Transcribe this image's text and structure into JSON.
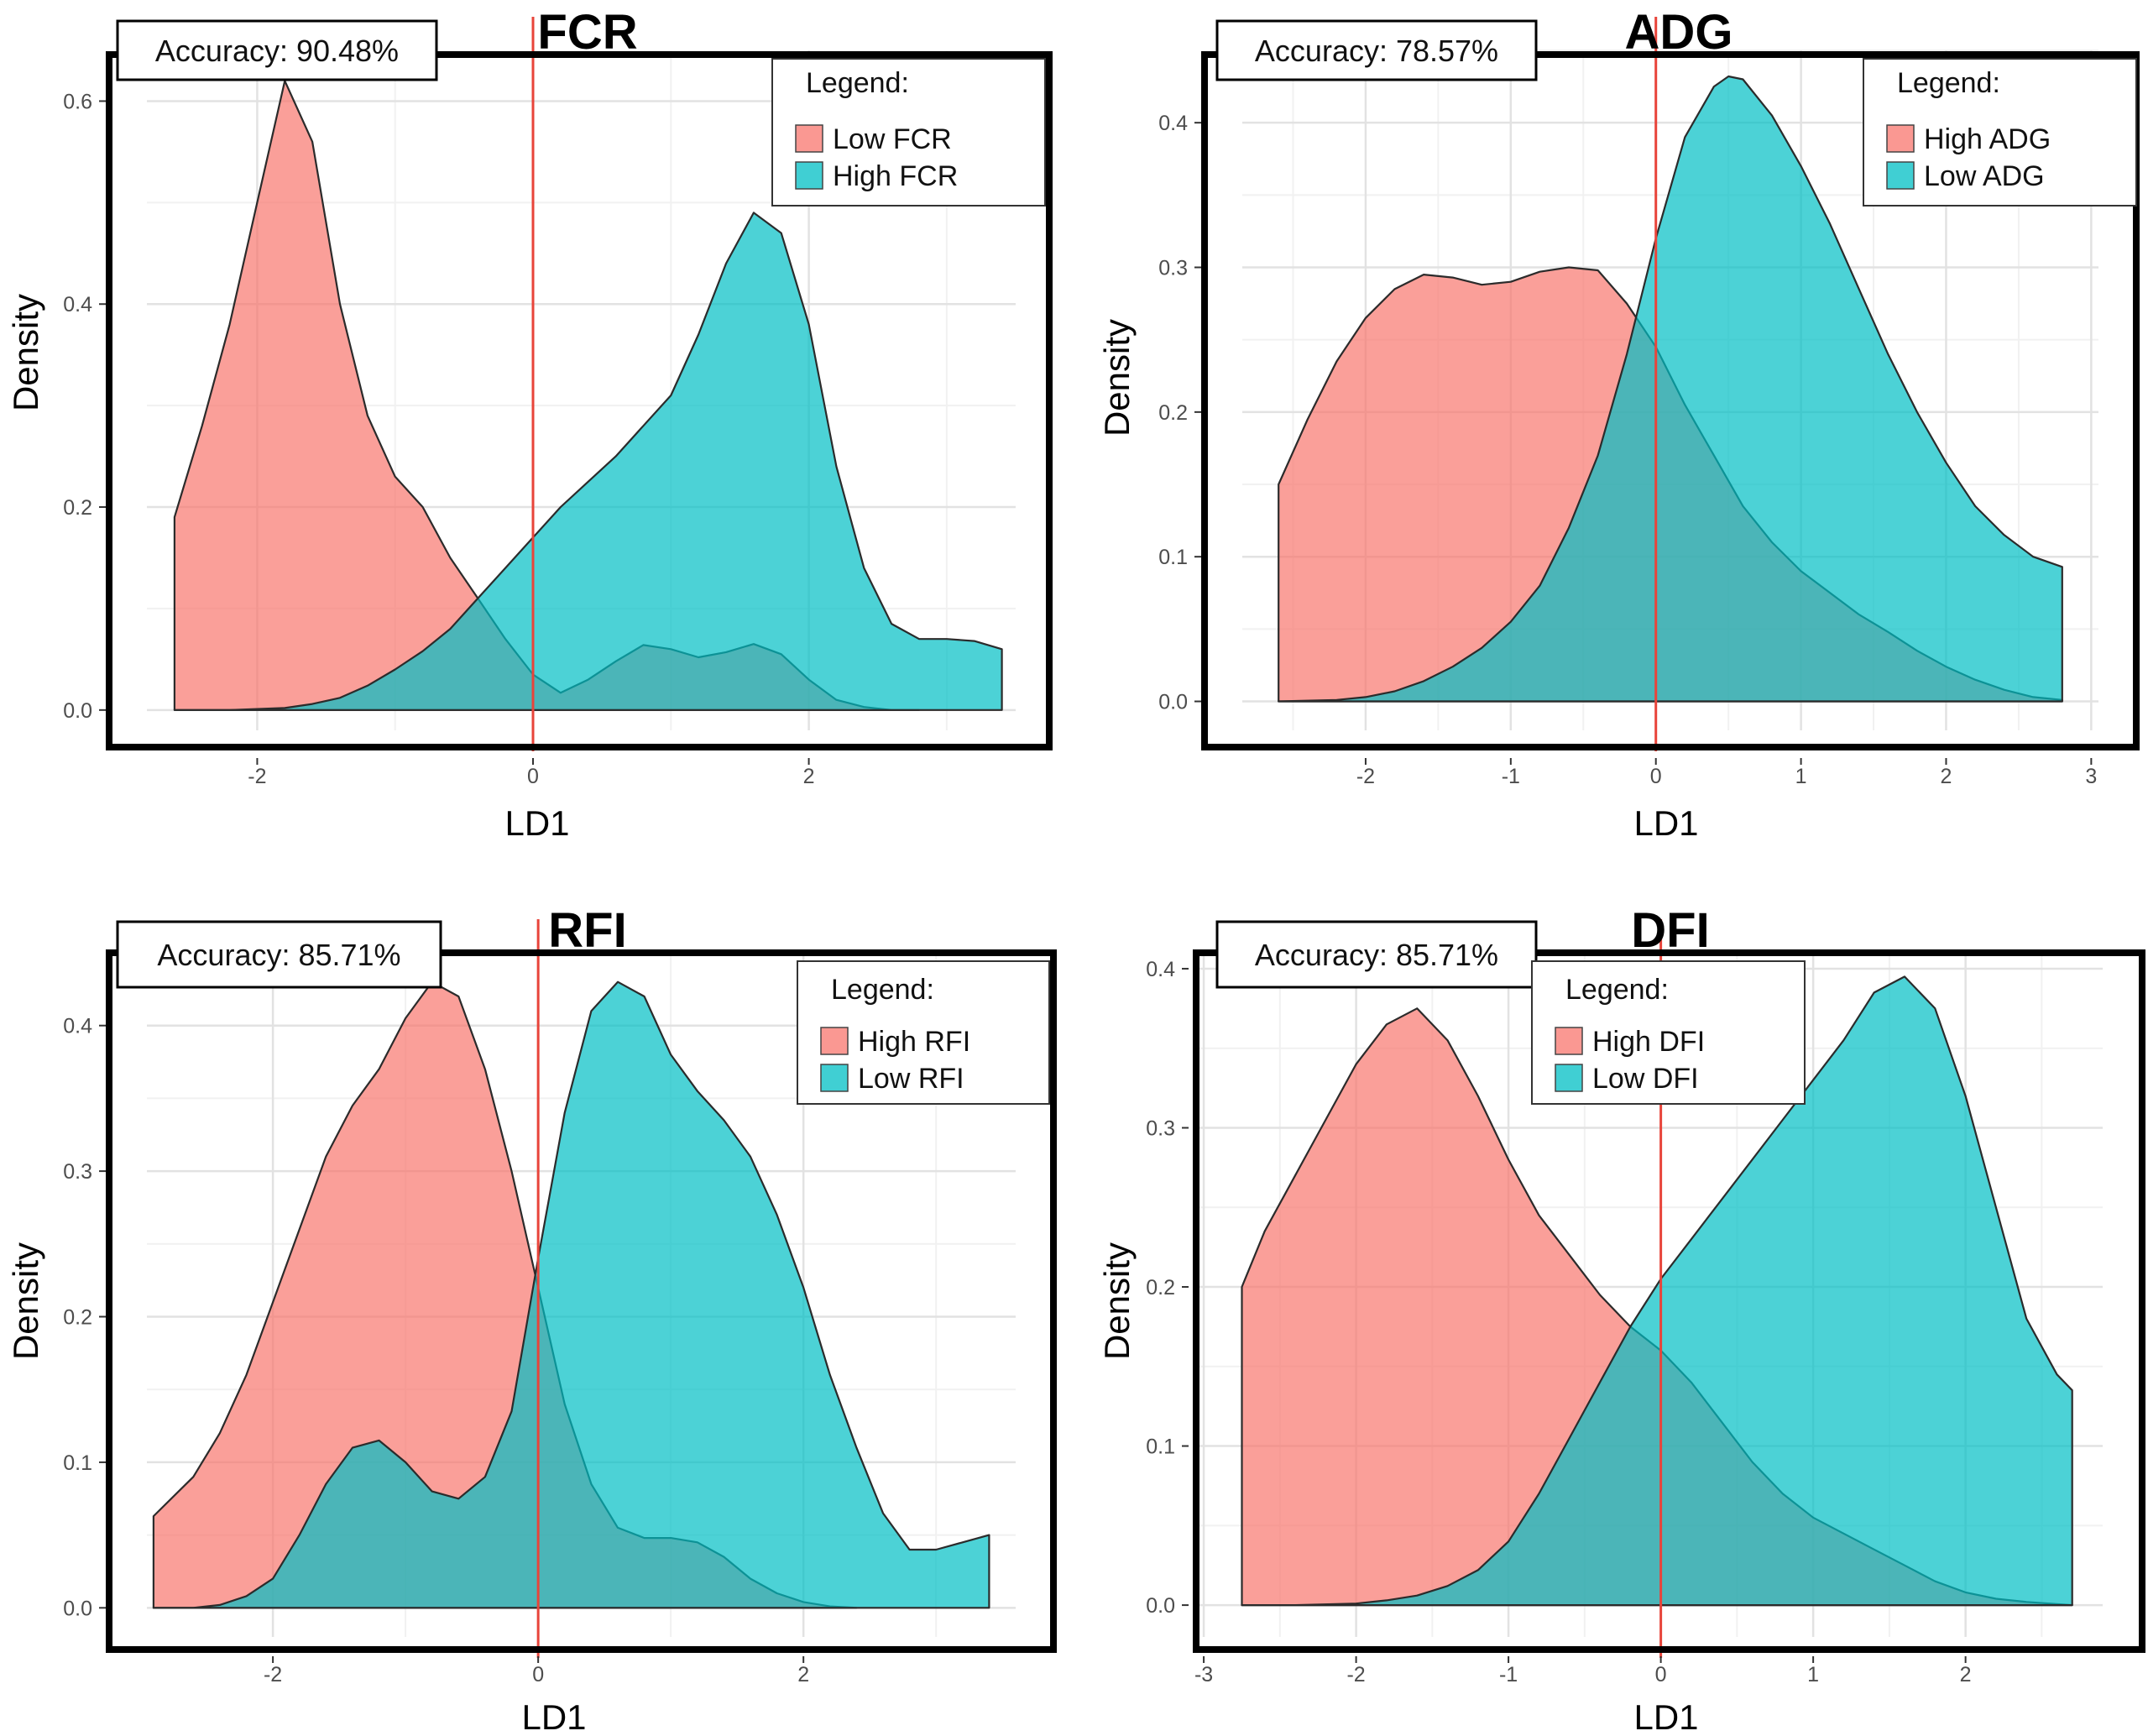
{
  "chart_data": [
    {
      "type": "area",
      "title": "FCR",
      "accuracy_label": "Accuracy: 90.48%",
      "xlabel": "LD1",
      "ylabel": "Density",
      "xlim": [
        -2.8,
        3.5
      ],
      "ylim": [
        -0.02,
        0.65
      ],
      "xticks": [
        -2,
        0,
        2
      ],
      "xtick_labels": [
        "-2",
        "0",
        "2"
      ],
      "yticks": [
        0.0,
        0.2,
        0.4,
        0.6
      ],
      "ytick_labels": [
        "0.0",
        "0.2",
        "0.4",
        "0.6"
      ],
      "ref_line_x": 0,
      "legend_title": "Legend:",
      "legend_position": "top-right",
      "series": [
        {
          "name": "Low FCR",
          "color": "#F8766D",
          "x": [
            -2.6,
            -2.4,
            -2.2,
            -2.0,
            -1.8,
            -1.6,
            -1.4,
            -1.2,
            -1.0,
            -0.8,
            -0.6,
            -0.4,
            -0.2,
            0.0,
            0.2,
            0.4,
            0.6,
            0.8,
            1.0,
            1.2,
            1.4,
            1.6,
            1.8,
            2.0,
            2.2,
            2.4,
            2.6,
            2.8
          ],
          "y": [
            0.19,
            0.28,
            0.38,
            0.5,
            0.62,
            0.56,
            0.4,
            0.29,
            0.23,
            0.2,
            0.15,
            0.11,
            0.07,
            0.035,
            0.017,
            0.03,
            0.048,
            0.064,
            0.06,
            0.052,
            0.057,
            0.065,
            0.055,
            0.03,
            0.01,
            0.003,
            0.0,
            0.0
          ]
        },
        {
          "name": "High FCR",
          "color": "#00BFC4",
          "x": [
            -2.6,
            -2.2,
            -1.8,
            -1.6,
            -1.4,
            -1.2,
            -1.0,
            -0.8,
            -0.6,
            -0.4,
            -0.2,
            0.0,
            0.2,
            0.4,
            0.6,
            0.8,
            1.0,
            1.2,
            1.4,
            1.6,
            1.8,
            2.0,
            2.2,
            2.4,
            2.6,
            2.8,
            3.0,
            3.2,
            3.4
          ],
          "y": [
            0.0,
            0.0,
            0.002,
            0.006,
            0.012,
            0.024,
            0.04,
            0.058,
            0.08,
            0.11,
            0.14,
            0.17,
            0.2,
            0.225,
            0.25,
            0.28,
            0.31,
            0.37,
            0.44,
            0.49,
            0.47,
            0.38,
            0.24,
            0.14,
            0.085,
            0.07,
            0.07,
            0.068,
            0.06
          ]
        }
      ]
    },
    {
      "type": "area",
      "title": "ADG",
      "accuracy_label": "Accuracy: 78.57%",
      "xlabel": "LD1",
      "ylabel": "Density",
      "xlim": [
        -2.85,
        3.05
      ],
      "ylim": [
        -0.02,
        0.45
      ],
      "xticks": [
        -2,
        -1,
        0,
        1,
        2,
        3
      ],
      "xtick_labels": [
        "-2",
        "-1",
        "0",
        "1",
        "2",
        "3"
      ],
      "yticks": [
        0.0,
        0.1,
        0.2,
        0.3,
        0.4
      ],
      "ytick_labels": [
        "0.0",
        "0.1",
        "0.2",
        "0.3",
        "0.4"
      ],
      "ref_line_x": 0,
      "legend_title": "Legend:",
      "legend_position": "top-right",
      "series": [
        {
          "name": "High ADG",
          "color": "#F8766D",
          "x": [
            -2.6,
            -2.4,
            -2.2,
            -2.0,
            -1.8,
            -1.6,
            -1.4,
            -1.2,
            -1.0,
            -0.8,
            -0.6,
            -0.4,
            -0.2,
            0.0,
            0.2,
            0.4,
            0.6,
            0.8,
            1.0,
            1.2,
            1.4,
            1.6,
            1.8,
            2.0,
            2.2,
            2.4,
            2.6,
            2.8
          ],
          "y": [
            0.15,
            0.195,
            0.235,
            0.265,
            0.285,
            0.295,
            0.293,
            0.288,
            0.29,
            0.297,
            0.3,
            0.298,
            0.275,
            0.245,
            0.205,
            0.17,
            0.135,
            0.11,
            0.09,
            0.075,
            0.06,
            0.048,
            0.035,
            0.024,
            0.015,
            0.008,
            0.003,
            0.001
          ]
        },
        {
          "name": "Low ADG",
          "color": "#00BFC4",
          "x": [
            -2.6,
            -2.2,
            -2.0,
            -1.8,
            -1.6,
            -1.4,
            -1.2,
            -1.0,
            -0.8,
            -0.6,
            -0.4,
            -0.2,
            0.0,
            0.2,
            0.4,
            0.5,
            0.6,
            0.8,
            1.0,
            1.2,
            1.4,
            1.6,
            1.8,
            2.0,
            2.2,
            2.4,
            2.6,
            2.8
          ],
          "y": [
            0.0,
            0.001,
            0.003,
            0.007,
            0.014,
            0.024,
            0.037,
            0.055,
            0.08,
            0.12,
            0.17,
            0.24,
            0.32,
            0.39,
            0.425,
            0.432,
            0.43,
            0.405,
            0.37,
            0.33,
            0.285,
            0.24,
            0.2,
            0.165,
            0.135,
            0.115,
            0.1,
            0.093
          ]
        }
      ]
    },
    {
      "type": "area",
      "title": "RFI",
      "accuracy_label": "Accuracy: 85.71%",
      "xlabel": "LD1",
      "ylabel": "Density",
      "xlim": [
        -2.95,
        3.6
      ],
      "ylim": [
        -0.02,
        0.45
      ],
      "xticks": [
        -2,
        0,
        2
      ],
      "xtick_labels": [
        "-2",
        "0",
        "2"
      ],
      "yticks": [
        0.0,
        0.1,
        0.2,
        0.3,
        0.4
      ],
      "ytick_labels": [
        "0.0",
        "0.1",
        "0.2",
        "0.3",
        "0.4"
      ],
      "ref_line_x": 0,
      "legend_title": "Legend:",
      "legend_position": "top-right",
      "series": [
        {
          "name": "High RFI",
          "color": "#F8766D",
          "x": [
            -2.9,
            -2.6,
            -2.4,
            -2.2,
            -2.0,
            -1.8,
            -1.6,
            -1.4,
            -1.2,
            -1.0,
            -0.8,
            -0.6,
            -0.4,
            -0.2,
            0.0,
            0.2,
            0.4,
            0.6,
            0.8,
            1.0,
            1.2,
            1.4,
            1.6,
            1.8,
            2.0,
            2.2,
            2.4
          ],
          "y": [
            0.063,
            0.09,
            0.12,
            0.16,
            0.21,
            0.26,
            0.31,
            0.345,
            0.37,
            0.405,
            0.43,
            0.42,
            0.37,
            0.3,
            0.22,
            0.14,
            0.085,
            0.055,
            0.048,
            0.048,
            0.045,
            0.035,
            0.02,
            0.01,
            0.004,
            0.001,
            0.0
          ]
        },
        {
          "name": "Low RFI",
          "color": "#00BFC4",
          "x": [
            -2.9,
            -2.6,
            -2.4,
            -2.2,
            -2.0,
            -1.8,
            -1.6,
            -1.4,
            -1.2,
            -1.0,
            -0.8,
            -0.6,
            -0.4,
            -0.2,
            0.0,
            0.2,
            0.4,
            0.6,
            0.8,
            1.0,
            1.2,
            1.4,
            1.6,
            1.8,
            2.0,
            2.2,
            2.4,
            2.6,
            2.8,
            3.0,
            3.2,
            3.4
          ],
          "y": [
            0.0,
            0.0,
            0.002,
            0.008,
            0.02,
            0.05,
            0.085,
            0.11,
            0.115,
            0.1,
            0.08,
            0.075,
            0.09,
            0.135,
            0.24,
            0.34,
            0.41,
            0.43,
            0.42,
            0.38,
            0.355,
            0.335,
            0.31,
            0.27,
            0.22,
            0.16,
            0.11,
            0.065,
            0.04,
            0.04,
            0.045,
            0.05
          ]
        }
      ]
    },
    {
      "type": "area",
      "title": "DFI",
      "accuracy_label": "Accuracy: 85.71%",
      "xlabel": "LD1",
      "ylabel": "Density",
      "xlim": [
        -3.05,
        2.9
      ],
      "ylim": [
        -0.02,
        0.41
      ],
      "xticks": [
        -3,
        -2,
        -1,
        0,
        1,
        2
      ],
      "xtick_labels": [
        "-3",
        "-2",
        "-1",
        "0",
        "1",
        "2"
      ],
      "yticks": [
        0.0,
        0.1,
        0.2,
        0.3,
        0.4
      ],
      "ytick_labels": [
        "0.0",
        "0.1",
        "0.2",
        "0.3",
        "0.4"
      ],
      "ref_line_x": 0,
      "legend_title": "Legend:",
      "legend_position": "top-right",
      "series": [
        {
          "name": "High DFI",
          "color": "#F8766D",
          "x": [
            -2.75,
            -2.6,
            -2.4,
            -2.2,
            -2.0,
            -1.8,
            -1.6,
            -1.4,
            -1.2,
            -1.0,
            -0.8,
            -0.6,
            -0.4,
            -0.2,
            0.0,
            0.2,
            0.4,
            0.6,
            0.8,
            1.0,
            1.2,
            1.4,
            1.6,
            1.8,
            2.0,
            2.2,
            2.4,
            2.7
          ],
          "y": [
            0.2,
            0.235,
            0.27,
            0.305,
            0.34,
            0.365,
            0.375,
            0.355,
            0.32,
            0.28,
            0.245,
            0.22,
            0.195,
            0.175,
            0.16,
            0.14,
            0.115,
            0.09,
            0.07,
            0.055,
            0.045,
            0.035,
            0.025,
            0.015,
            0.008,
            0.004,
            0.002,
            0.0
          ]
        },
        {
          "name": "Low DFI",
          "color": "#00BFC4",
          "x": [
            -2.75,
            -2.4,
            -2.0,
            -1.8,
            -1.6,
            -1.4,
            -1.2,
            -1.0,
            -0.8,
            -0.6,
            -0.4,
            -0.2,
            0.0,
            0.2,
            0.4,
            0.6,
            0.8,
            1.0,
            1.2,
            1.4,
            1.6,
            1.8,
            2.0,
            2.2,
            2.4,
            2.6,
            2.7
          ],
          "y": [
            0.0,
            0.0,
            0.001,
            0.003,
            0.006,
            0.012,
            0.022,
            0.04,
            0.07,
            0.105,
            0.14,
            0.175,
            0.205,
            0.23,
            0.255,
            0.28,
            0.305,
            0.33,
            0.355,
            0.385,
            0.395,
            0.375,
            0.32,
            0.25,
            0.18,
            0.145,
            0.135
          ]
        }
      ]
    }
  ]
}
